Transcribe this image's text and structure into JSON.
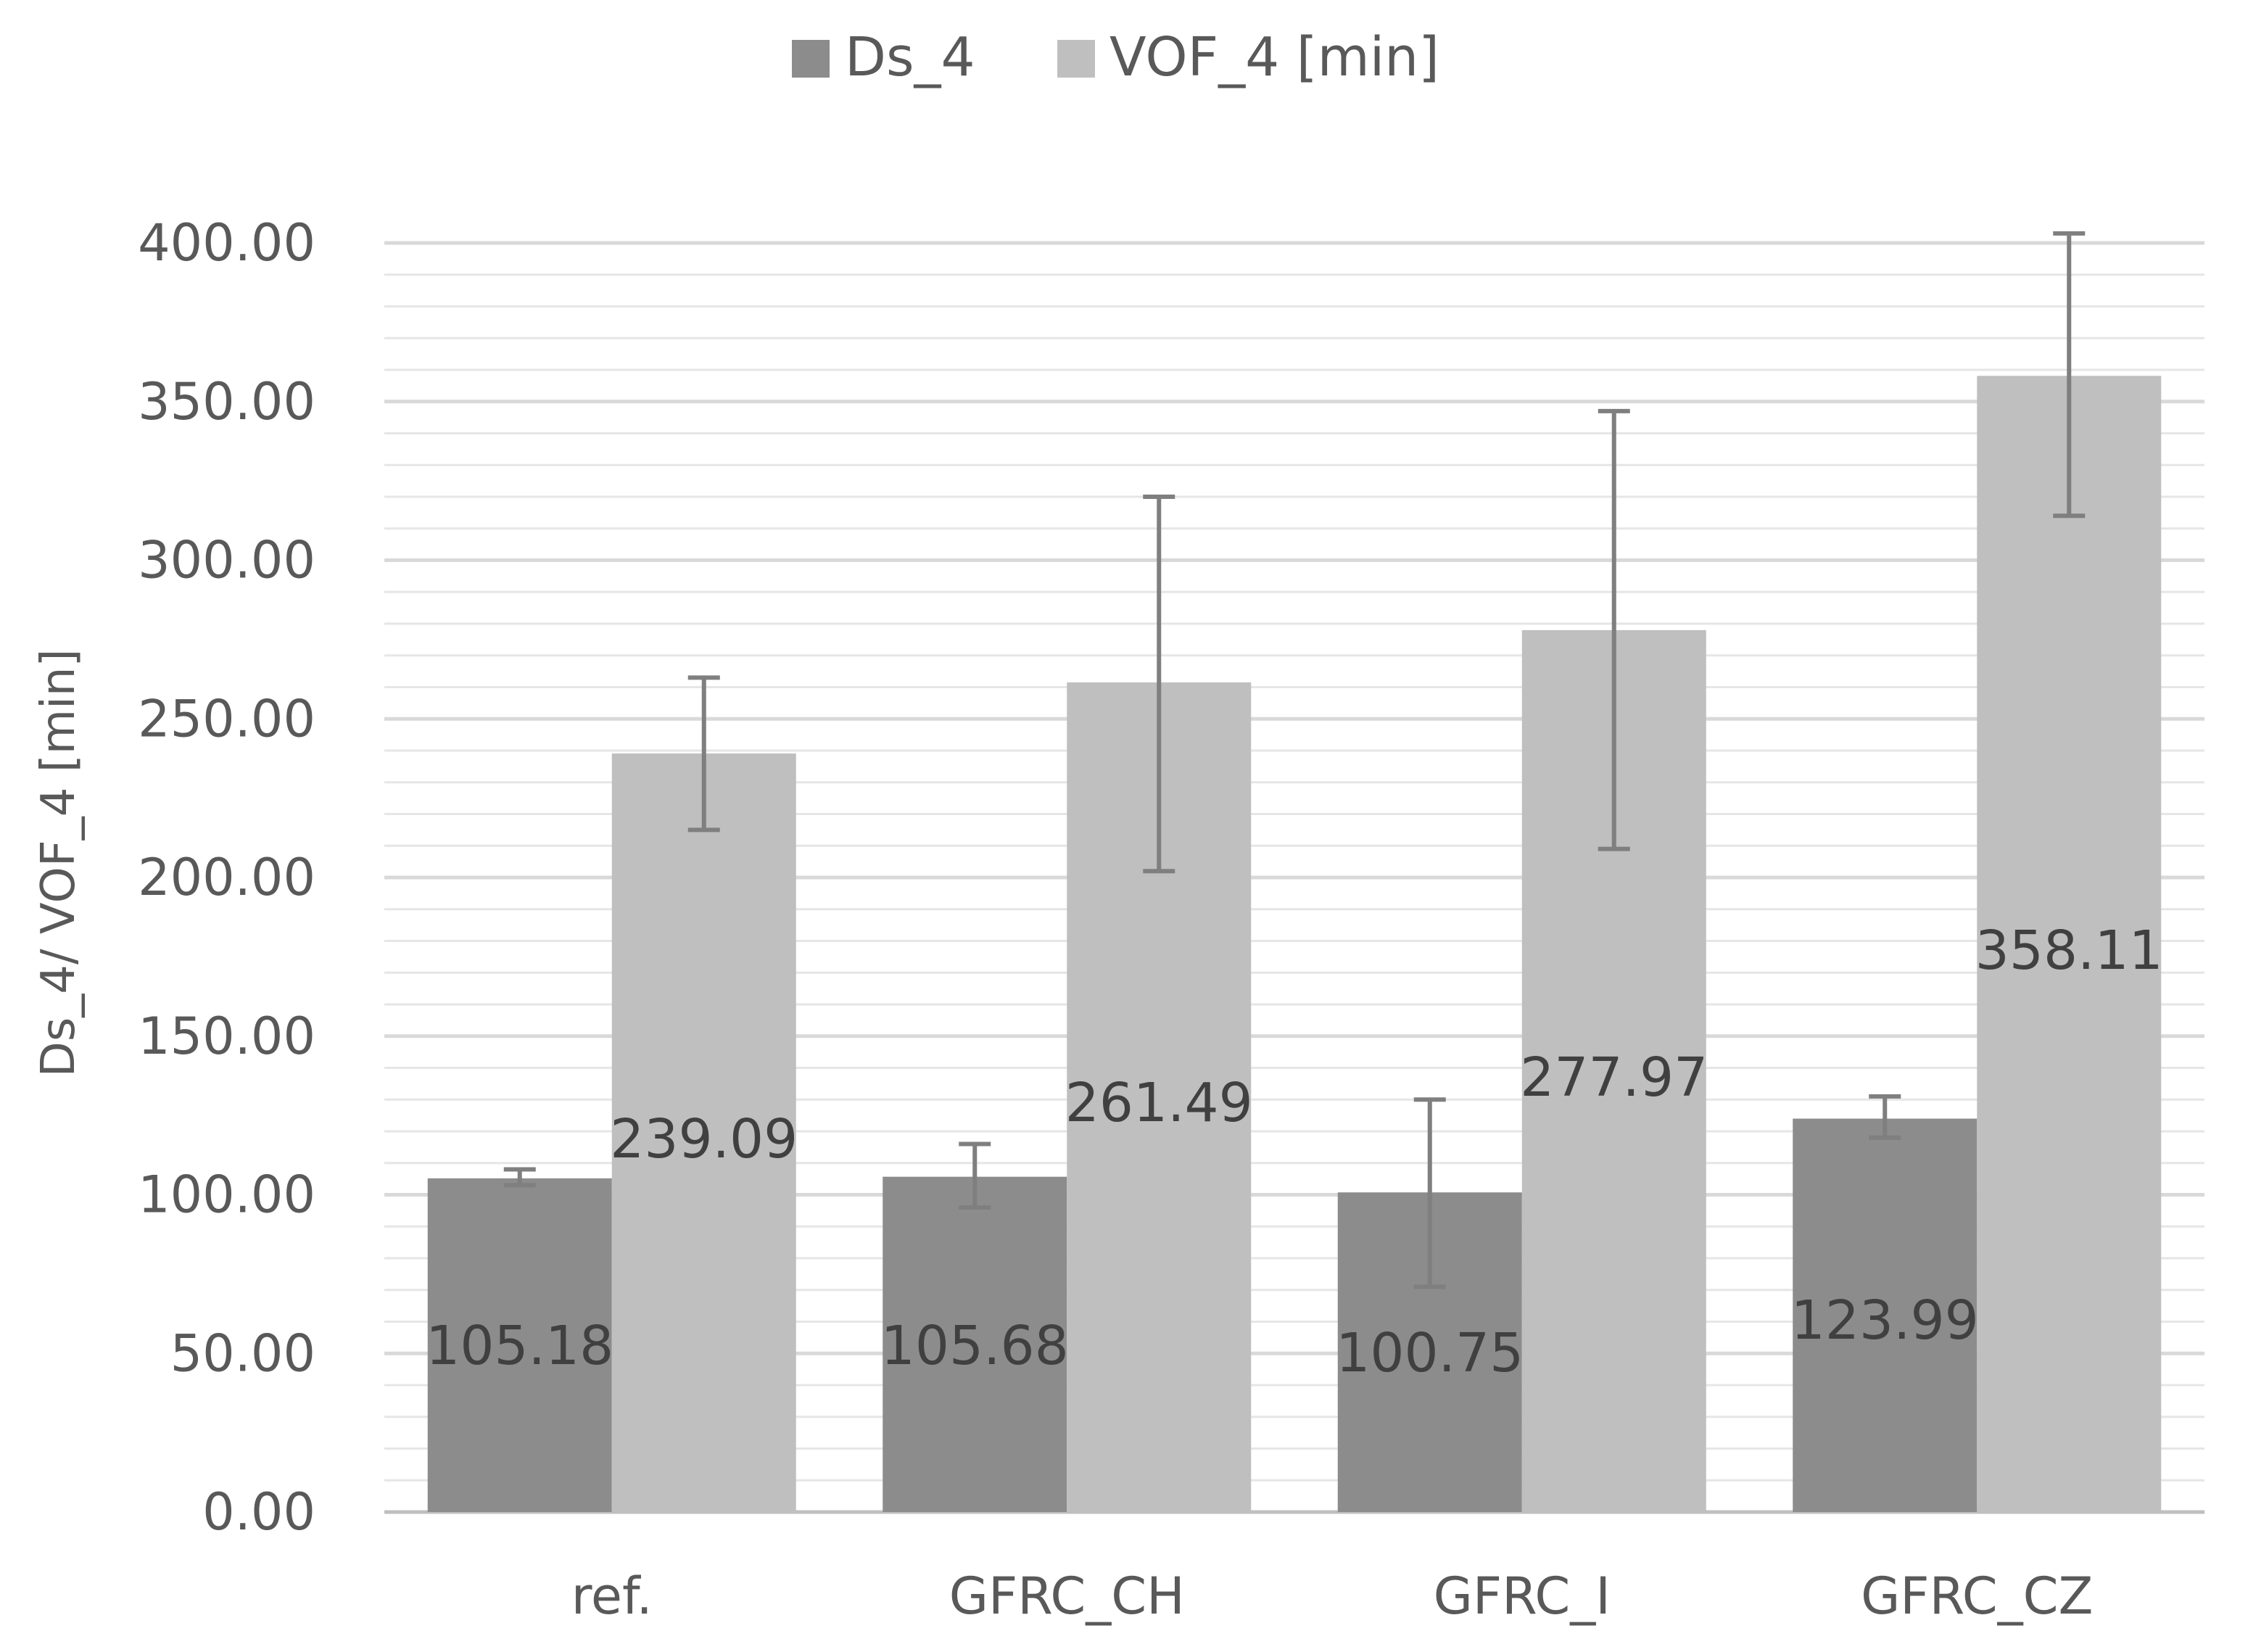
{
  "chart_data": {
    "type": "bar",
    "title": "",
    "xlabel": "",
    "ylabel": "Ds_4/ VOF_4 [min]",
    "ylim": [
      0,
      400
    ],
    "y_ticks": [
      "0.00",
      "50.00",
      "100.00",
      "150.00",
      "200.00",
      "250.00",
      "300.00",
      "350.00",
      "400.00"
    ],
    "y_tick_values": [
      0,
      50,
      100,
      150,
      200,
      250,
      300,
      350,
      400
    ],
    "minor_grid_step": 10,
    "grid": true,
    "legend_position": "top-center",
    "categories": [
      "ref.",
      "GFRC_CH",
      "GFRC_I",
      "GFRC_CZ"
    ],
    "series": [
      {
        "name": "Ds_4",
        "color": "#8c8c8c",
        "values": [
          105.18,
          105.68,
          100.75,
          123.99
        ],
        "labels": [
          "105.18",
          "105.68",
          "100.75",
          "123.99"
        ],
        "error_low": [
          103,
          96,
          71,
          118
        ],
        "error_high": [
          108,
          116,
          130,
          131
        ]
      },
      {
        "name": "VOF_4 [min]",
        "color": "#bfbfbf",
        "values": [
          239.09,
          261.49,
          277.97,
          358.11
        ],
        "labels": [
          "239.09",
          "261.49",
          "277.97",
          "358.11"
        ],
        "error_low": [
          215,
          202,
          209,
          314
        ],
        "error_high": [
          263,
          320,
          347,
          403
        ]
      }
    ],
    "error_bar_color": "#7f7f7f",
    "grid_color": "#d9d9d9"
  }
}
